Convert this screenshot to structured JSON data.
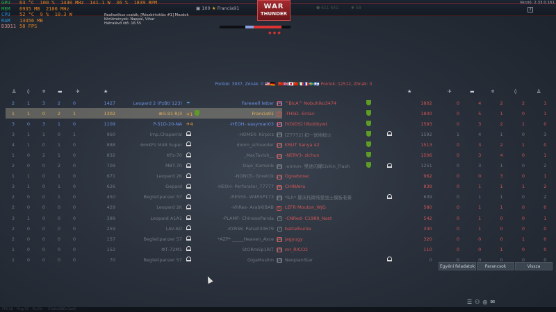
{
  "osd": [
    {
      "label": "GPU",
      "color": "#20b050",
      "values": [
        "63 °C",
        "100 %",
        "1430 MHz",
        "141.1 W",
        "36 %",
        "1839 RPM"
      ]
    },
    {
      "label": "MEM",
      "color": "#20b050",
      "values": [
        "6935 MB",
        "2100 MHz"
      ]
    },
    {
      "label": "CPU",
      "color": "#2090e0",
      "values": [
        "52 °C",
        "9 %",
        "10.3 W"
      ]
    },
    {
      "label": "RAM",
      "color": "#2090e0",
      "values": [
        "13456 MB"
      ]
    },
    {
      "label": "D3D11",
      "color": "#d09090",
      "values": [
        "58 FPS"
      ]
    }
  ],
  "mission": {
    "line1": "Realisztikus csaták, [Részbirtoklás #1] Mozdok",
    "line2": "Körülmények: Nappal, Vihar",
    "line3": "Hátralévő idő: 16:55"
  },
  "topbar": {
    "player_level": "100",
    "player_name": "Francia91",
    "logo_top": "WAR",
    "logo_bottom": "THUNDER",
    "silver": "611 641",
    "gold": "58",
    "version": "Verzió: 2.33.0.161",
    "help": "?"
  },
  "teams": {
    "left_score": "Pontok: 3937, Zónák: 0",
    "right_score": "Pontok: 12512, Zónák: 3",
    "left_flags": "🇺🇸🇩🇪",
    "right_flags": "🇨🇳🇬🇧🇯🇵🇨🇳🇮🇹🇫🇷🇸🇪🇮🇱"
  },
  "colors": {
    "ally": "#6b8fe0",
    "enemy": "#d05555",
    "self": "#e6b25a",
    "accent": "#a52a2f"
  },
  "header_icons": [
    "assist-icon",
    "capture-icon",
    "ground-kill-icon",
    "tank-kill-icon",
    "air-kill-icon",
    "score-star-icon"
  ],
  "left": [
    {
      "s": "blue",
      "c": [
        "2",
        "1",
        "3",
        "2",
        "0"
      ],
      "score": "1427",
      "veh": "Leopard 2 (PzBtl 123)",
      "st": "para",
      "name": "Farewell letter",
      "rank": "4"
    },
    {
      "s": "me",
      "c": [
        "1",
        "1",
        "0",
        "2",
        "1"
      ],
      "score": "1302",
      "veh": "⊕G.91 R/3",
      "st": "plane1",
      "name": "Francia91",
      "rank": ""
    },
    {
      "s": "blue",
      "c": [
        "3",
        "0",
        "3",
        "1",
        "0"
      ],
      "score": "1109",
      "veh": "P-51D-20-NA",
      "st": "plane4",
      "name": "-HEOH- easyman03",
      "rank": "2"
    },
    {
      "s": "grey",
      "c": [
        "3",
        "1",
        "1",
        "0",
        "1"
      ],
      "score": "960",
      "veh": "Imp.Chaparral",
      "st": "dead",
      "name": "-HOMEK- Kirpics",
      "rank": "4"
    },
    {
      "s": "grey",
      "c": [
        "4",
        "1",
        "0",
        "1",
        "0"
      ],
      "score": "888",
      "veh": "⊕mKPz M48 Super",
      "st": "dead",
      "name": "doom_schneider",
      "rank": "3"
    },
    {
      "s": "grey",
      "c": [
        "1",
        "0",
        "2",
        "1",
        "0"
      ],
      "score": "832",
      "veh": "KPz-70",
      "st": "dead",
      "name": "_MacTavish__",
      "rank": "3"
    },
    {
      "s": "grey",
      "c": [
        "2",
        "0",
        "0",
        "2",
        "0"
      ],
      "score": "709",
      "veh": "MBT-70",
      "st": "dead",
      "name": "Dajo_Kamenb",
      "rank": "3"
    },
    {
      "s": "grey",
      "c": [
        "1",
        "1",
        "0",
        "1",
        "0"
      ],
      "score": "671",
      "veh": "Leopard 2K",
      "st": "dead",
      "name": "-NONCE- Gorelcik",
      "rank": "3"
    },
    {
      "s": "grey",
      "c": [
        "3",
        "1",
        "0",
        "1",
        "0"
      ],
      "score": "626",
      "veh": "Gepard",
      "st": "dead",
      "name": "-HEOH- Perforator_77777",
      "rank": "3"
    },
    {
      "s": "grey",
      "c": [
        "2",
        "0",
        "0",
        "1",
        "0"
      ],
      "score": "450",
      "veh": "Begleitpanzer 57",
      "st": "dead",
      "name": "-RESSS- W4RSP173",
      "rank": "3"
    },
    {
      "s": "grey",
      "c": [
        "2",
        "0",
        "0",
        "0",
        "0"
      ],
      "score": "429",
      "veh": "Leopard 2K",
      "st": "dead",
      "name": "-VhRes- ArabKIBAB",
      "rank": ""
    },
    {
      "s": "grey",
      "c": [
        "3",
        "1",
        "0",
        "0",
        "0"
      ],
      "score": "389",
      "veh": "Leopard A1A1",
      "st": "dead",
      "name": "-PLAMF- ChinesePanda",
      "rank": "3"
    },
    {
      "s": "grey",
      "c": [
        "2",
        "0",
        "0",
        "0",
        "0"
      ],
      "score": "259",
      "veh": "LAV-AD",
      "st": "dead",
      "name": "-KYRSK- Paha030679",
      "rank": "2"
    },
    {
      "s": "grey",
      "c": [
        "2",
        "0",
        "0",
        "0",
        "0"
      ],
      "score": "157",
      "veh": "Begleitpanzer 57",
      "st": "dead",
      "name": "*AZP* _____Heaven_Asce",
      "rank": "3"
    },
    {
      "s": "grey",
      "c": [
        "1",
        "0",
        "0",
        "0",
        "0"
      ],
      "score": "152",
      "veh": "ФТ-72М1",
      "st": "dead",
      "name": "StORmSp1RiT",
      "rank": "3"
    },
    {
      "s": "grey",
      "c": [
        "1",
        "0",
        "0",
        "0",
        "0"
      ],
      "score": "70",
      "veh": "Begleitpanzer 57",
      "st": "dead",
      "name": "GigaMuslim",
      "rank": "3"
    }
  ],
  "right": [
    {
      "s": "red",
      "rank": "3",
      "name": "^BicA^ Nobuhiko3474",
      "shield": true,
      "dead": false,
      "score": "1802",
      "c": [
        "0",
        "4",
        "2",
        "2",
        "1"
      ]
    },
    {
      "s": "red",
      "rank": "5",
      "name": "-THSD- Entav",
      "shield": true,
      "dead": false,
      "score": "1800",
      "c": [
        "0",
        "5",
        "1",
        "0",
        "1"
      ]
    },
    {
      "s": "red",
      "rank": "2",
      "name": "[VOIDS] lilbobbywt",
      "shield": true,
      "dead": false,
      "score": "1593",
      "c": [
        "0",
        "3",
        "2",
        "1",
        "0"
      ]
    },
    {
      "s": "grey",
      "rank": "2",
      "name": "[Z7772] 扣一送地狱火",
      "shield": true,
      "dead": true,
      "score": "1592",
      "c": [
        "1",
        "4",
        "1",
        "0",
        "3"
      ]
    },
    {
      "s": "red",
      "rank": "3",
      "name": "KRUT Sanya 42",
      "shield": true,
      "dead": false,
      "score": "1513",
      "c": [
        "0",
        "3",
        "2",
        "1",
        "0"
      ]
    },
    {
      "s": "red",
      "rank": "5",
      "name": "-NERV3- zichun",
      "shield": true,
      "dead": false,
      "score": "1506",
      "c": [
        "0",
        "3",
        "4",
        "0",
        "1"
      ]
    },
    {
      "s": "grey",
      "rank": "4",
      "name": "-onmm- 樊进闪耀Eishin_Flash",
      "shield": true,
      "dead": true,
      "score": "1251",
      "c": [
        "0",
        "3",
        "1",
        "0",
        "2"
      ]
    },
    {
      "s": "red",
      "rank": "2",
      "name": "Ogneborec",
      "shield": false,
      "dead": false,
      "score": "962",
      "c": [
        "0",
        "0",
        "3",
        "0",
        "1"
      ]
    },
    {
      "s": "red",
      "rank": "4",
      "name": "CHINAHu",
      "shield": false,
      "dead": false,
      "score": "839",
      "c": [
        "0",
        "1",
        "1",
        "1",
        "2"
      ]
    },
    {
      "s": "grey",
      "rank": "6",
      "name": "*lLh* 暴沃托斯纯爱战士摸板老豪",
      "shield": false,
      "dead": true,
      "score": "639",
      "c": [
        "0",
        "1",
        "1",
        "0",
        "2"
      ]
    },
    {
      "s": "red",
      "rank": "6",
      "name": "LEFR Mouton_WJG",
      "shield": false,
      "dead": false,
      "score": "580",
      "c": [
        "0",
        "1",
        "1",
        "0",
        "0"
      ]
    },
    {
      "s": "red",
      "rank": "",
      "name": "-CNRed- C1989_Nast",
      "shield": false,
      "dead": false,
      "score": "542",
      "c": [
        "0",
        "1",
        "0",
        "0",
        "1"
      ]
    },
    {
      "s": "red",
      "rank": "",
      "name": "battelhunte",
      "shield": false,
      "dead": false,
      "score": "330",
      "c": [
        "0",
        "1",
        "0",
        "0",
        "0"
      ]
    },
    {
      "s": "red",
      "rank": "2",
      "name": "jagyugy",
      "shield": false,
      "dead": false,
      "score": "320",
      "c": [
        "0",
        "0",
        "0",
        "1",
        "0"
      ]
    },
    {
      "s": "red",
      "rank": "3",
      "name": "mr_RICCO",
      "shield": false,
      "dead": false,
      "score": "110",
      "c": [
        "0",
        "0",
        "1",
        "0",
        "0"
      ]
    },
    {
      "s": "grey",
      "rank": "1",
      "name": "NeoplanStar",
      "shield": false,
      "dead": true,
      "score": "0",
      "c": [
        "0",
        "0",
        "0",
        "0",
        "0"
      ]
    }
  ],
  "buttons": {
    "tasks": "Egyéni feladatok",
    "orders": "Parancsok",
    "back": "Vissza"
  },
  "footer": {
    "fps": "FPS:58",
    "ping": "Ping:72",
    "pl": "PL:1%",
    "id": "27afed58f1e1ae5"
  }
}
